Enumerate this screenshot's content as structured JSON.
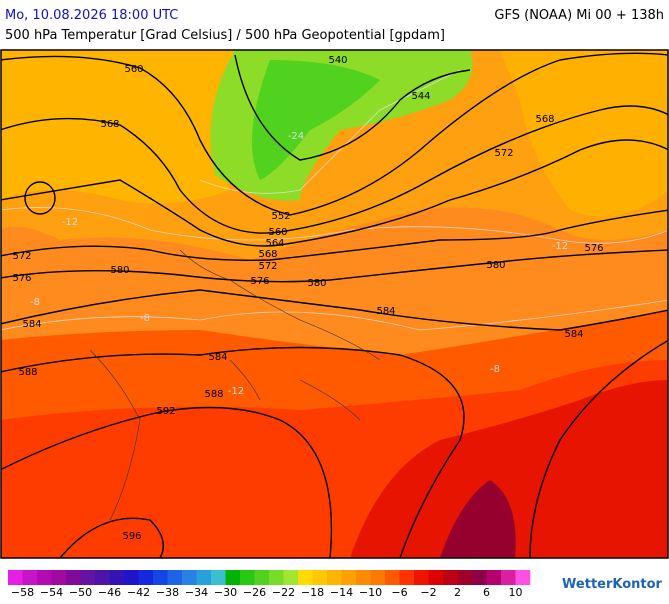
{
  "header": {
    "datetime": "Mo, 10.08.2026 18:00 UTC",
    "model": "GFS (NOAA) Mi 00 + 138h",
    "subtitle": "500 hPa Temperatur [Grad Celsius] / 500 hPa Geopotential [gpdam]"
  },
  "map": {
    "contour_labels": [
      "560",
      "540",
      "544",
      "568",
      "568",
      "572",
      "552",
      "560",
      "564",
      "568",
      "572",
      "576",
      "572",
      "576",
      "580",
      "580",
      "580",
      "576",
      "584",
      "584",
      "584",
      "584",
      "588",
      "588",
      "592",
      "596"
    ],
    "temperature_labels": [
      "-24",
      "-12",
      "-12",
      "-8",
      "-8",
      "-8",
      "-12"
    ]
  },
  "colorbar": {
    "colors": [
      "#e61ee6",
      "#c814c8",
      "#b40ab4",
      "#a00aa0",
      "#820a9b",
      "#6414a0",
      "#4b14aa",
      "#3214b4",
      "#1e14c8",
      "#1428dc",
      "#1446e6",
      "#1e64e6",
      "#2882e6",
      "#28a0dc",
      "#3cbed2",
      "#00b400",
      "#28c814",
      "#50d21e",
      "#78dc28",
      "#a0e632",
      "#ffdc00",
      "#ffc800",
      "#ffb400",
      "#ffa000",
      "#ff8c00",
      "#ff7800",
      "#ff5a00",
      "#ff3200",
      "#f01400",
      "#dc0000",
      "#be0014",
      "#a00028",
      "#8c0046",
      "#b4006e",
      "#dc1ea0",
      "#ff50e6"
    ],
    "labels": [
      "−58",
      "−54",
      "−50",
      "−46",
      "−42",
      "−38",
      "−34",
      "−30",
      "−26",
      "−22",
      "−18",
      "−14",
      "−10",
      "−6",
      "−2",
      "2",
      "6",
      "10"
    ]
  },
  "logo": "WetterKontor"
}
